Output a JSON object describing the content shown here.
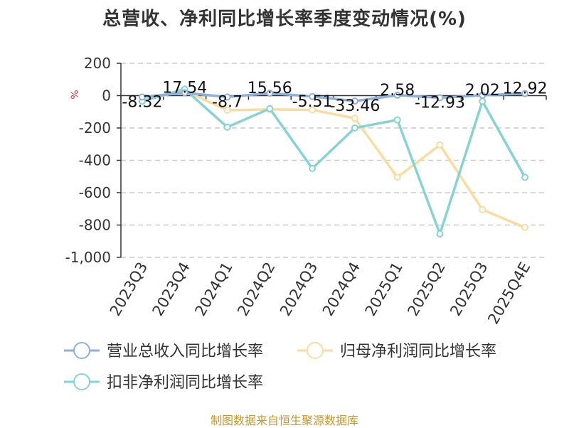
{
  "chart_data": {
    "type": "line",
    "title": "总营收、净利同比增长率季度变动情况(%)",
    "ylabel": "%",
    "ylim": [
      -1000,
      200
    ],
    "yticks": [
      200,
      0,
      -200,
      -400,
      -600,
      -800,
      -1000
    ],
    "ytick_labels": [
      "200",
      "0",
      "-200",
      "-400",
      "-600",
      "-800",
      "-1,000"
    ],
    "grid": true,
    "legend_position": "bottom",
    "categories": [
      "2023Q3",
      "2023Q4",
      "2024Q1",
      "2024Q2",
      "2024Q3",
      "2024Q4",
      "2025Q1",
      "2025Q2",
      "2025Q3",
      "2025Q4E"
    ],
    "series": [
      {
        "name": "营业总收入同比增长率",
        "color": "#8fb0d9",
        "values": [
          -8.32,
          17.54,
          -8.7,
          15.56,
          -5.51,
          -33.46,
          2.58,
          -12.93,
          2.02,
          12.92
        ],
        "labels": [
          "-8.32",
          "17.54",
          "-8.7",
          "15.56",
          "-5.51",
          "-33.46",
          "2.58",
          "-12.93",
          "2.02",
          "12.92"
        ]
      },
      {
        "name": "归母净利润同比增长率",
        "color": "#fbdca0",
        "values": [
          -30,
          30,
          -90,
          -85,
          -88,
          -140,
          -505,
          -305,
          -705,
          -815
        ]
      },
      {
        "name": "扣非净利润同比增长率",
        "color": "#86d3d6",
        "values": [
          -35,
          40,
          -195,
          -80,
          -450,
          -200,
          -150,
          -855,
          -35,
          -505
        ]
      }
    ]
  },
  "footer": {
    "source": "制图数据来自恒生聚源数据库"
  }
}
